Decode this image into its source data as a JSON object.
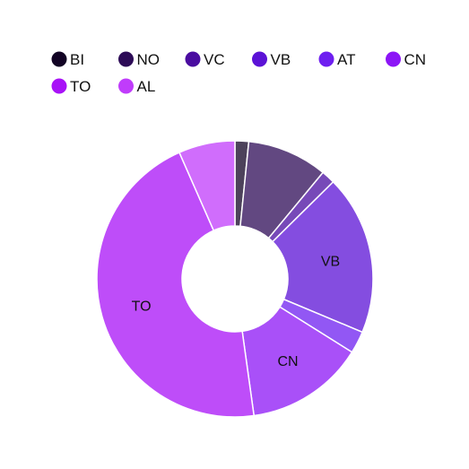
{
  "chart_data": {
    "type": "pie",
    "donut": true,
    "legend_position": "top-left",
    "slices": [
      {
        "label": "BI",
        "value": 1.6,
        "color": "#120324",
        "show_label": false
      },
      {
        "label": "NO",
        "value": 9.4,
        "color": "#2d0b57",
        "show_label": false
      },
      {
        "label": "VC",
        "value": 1.6,
        "color": "#4a0ca0",
        "show_label": false
      },
      {
        "label": "VB",
        "value": 18.7,
        "color": "#5b12d6",
        "show_label": true
      },
      {
        "label": "AT",
        "value": 2.6,
        "color": "#6e1ff0",
        "show_label": false
      },
      {
        "label": "CN",
        "value": 13.9,
        "color": "#8c15f6",
        "show_label": true
      },
      {
        "label": "TO",
        "value": 45.6,
        "color": "#a812f7",
        "show_label": true
      },
      {
        "label": "AL",
        "value": 6.6,
        "color": "#c03cfb",
        "show_label": false
      }
    ],
    "render_opacity": 0.75
  }
}
